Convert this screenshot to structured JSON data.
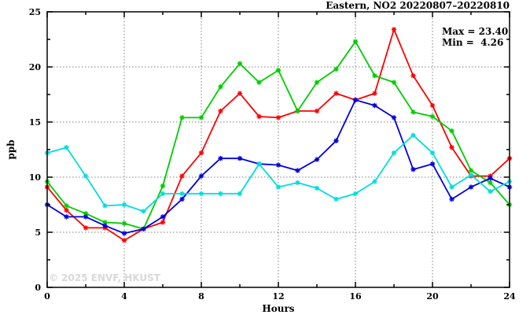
{
  "title": "Eastern, NO2 20220807–20220810",
  "annotation": {
    "max_label": "Max = 23.40",
    "min_label": "Min =  4.26"
  },
  "watermark": "© 2025 ENVF, HKUST",
  "chart_data": {
    "type": "line",
    "title": "Eastern, NO2 20220807–20220810",
    "xlabel": "Hours",
    "ylabel": "ppb",
    "xlim": [
      0,
      24
    ],
    "ylim": [
      0,
      25
    ],
    "x_major_ticks": [
      0,
      4,
      8,
      12,
      16,
      20,
      24
    ],
    "x_minor_step": 2,
    "y_major_ticks": [
      0,
      5,
      10,
      15,
      20,
      25
    ],
    "y_minor_step": 2.5,
    "grid": "dotted gray at major ticks, full box border, mirrored inward ticks",
    "legend": "none",
    "max_value": 23.4,
    "min_value": 4.26,
    "x": [
      0,
      1,
      2,
      3,
      4,
      5,
      6,
      7,
      8,
      9,
      10,
      11,
      12,
      13,
      14,
      15,
      16,
      17,
      18,
      19,
      20,
      21,
      22,
      23,
      24
    ],
    "series": [
      {
        "name": "series-red",
        "color": "#ff0000",
        "values": [
          9.1,
          7.0,
          5.4,
          5.4,
          4.26,
          5.3,
          5.9,
          10.1,
          12.2,
          16.0,
          17.6,
          15.5,
          15.4,
          16.0,
          16.0,
          17.6,
          17.0,
          17.6,
          23.4,
          19.2,
          16.5,
          12.7,
          10.1,
          10.1,
          11.7
        ]
      },
      {
        "name": "series-green",
        "color": "#00cc00",
        "values": [
          9.6,
          7.4,
          6.7,
          5.9,
          5.8,
          5.3,
          9.2,
          15.4,
          15.4,
          18.2,
          20.3,
          18.6,
          19.7,
          16.0,
          18.6,
          19.8,
          22.3,
          19.2,
          18.6,
          15.9,
          15.5,
          14.2,
          10.6,
          9.5,
          7.5
        ]
      },
      {
        "name": "series-blue",
        "color": "#0000dd",
        "values": [
          7.5,
          6.4,
          6.4,
          5.6,
          4.9,
          5.3,
          6.4,
          8.0,
          10.1,
          11.7,
          11.7,
          11.2,
          11.1,
          10.6,
          11.6,
          13.3,
          17.0,
          16.5,
          15.4,
          10.7,
          11.2,
          8.0,
          9.1,
          9.9,
          9.1
        ]
      },
      {
        "name": "series-cyan",
        "color": "#00dddd",
        "values": [
          12.2,
          12.7,
          10.1,
          7.4,
          7.5,
          6.9,
          8.5,
          8.5,
          8.5,
          8.5,
          8.5,
          11.2,
          9.1,
          9.5,
          9.0,
          8.0,
          8.5,
          9.6,
          12.2,
          13.8,
          12.2,
          9.1,
          10.2,
          8.7,
          9.6
        ]
      }
    ]
  }
}
